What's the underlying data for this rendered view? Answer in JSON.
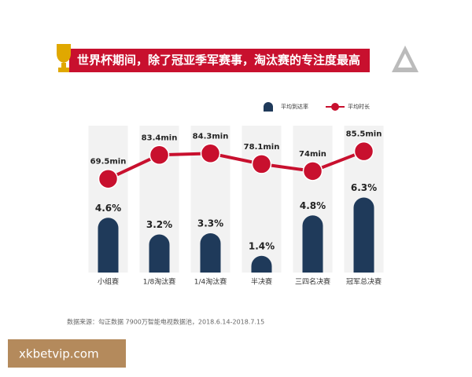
{
  "chart_data": {
    "type": "bar-line",
    "title": "世界杯期间，除了冠亚季军赛事，淘汰赛的专注度最高",
    "categories": [
      "小组赛",
      "1/8淘汰赛",
      "1/4淘汰赛",
      "半决赛",
      "三四名决赛",
      "冠军总决赛"
    ],
    "series": [
      {
        "name": "平均到达率",
        "color": "#1f3a5a",
        "type": "bar",
        "values": [
          4.6,
          3.2,
          3.3,
          1.4,
          4.8,
          6.3
        ],
        "value_labels": [
          "4.6%",
          "3.2%",
          "3.3%",
          "1.4%",
          "4.8%",
          "6.3%"
        ]
      },
      {
        "name": "平均时长",
        "color": "#c8102e",
        "type": "line",
        "axis": "y2",
        "values": [
          69.5,
          83.4,
          84.3,
          78.1,
          74,
          85.5
        ],
        "value_labels": [
          "69.5min",
          "83.4min",
          "84.3min",
          "78.1min",
          "74min",
          "85.5min"
        ]
      }
    ],
    "ylim": [
      0,
      13
    ],
    "y2lim": [
      15,
      105
    ],
    "source": "数据来源：勾正数据 7900万智能电视数据池，2018.6.14-2018.7.15",
    "watermark": "xkbetvip.com"
  }
}
